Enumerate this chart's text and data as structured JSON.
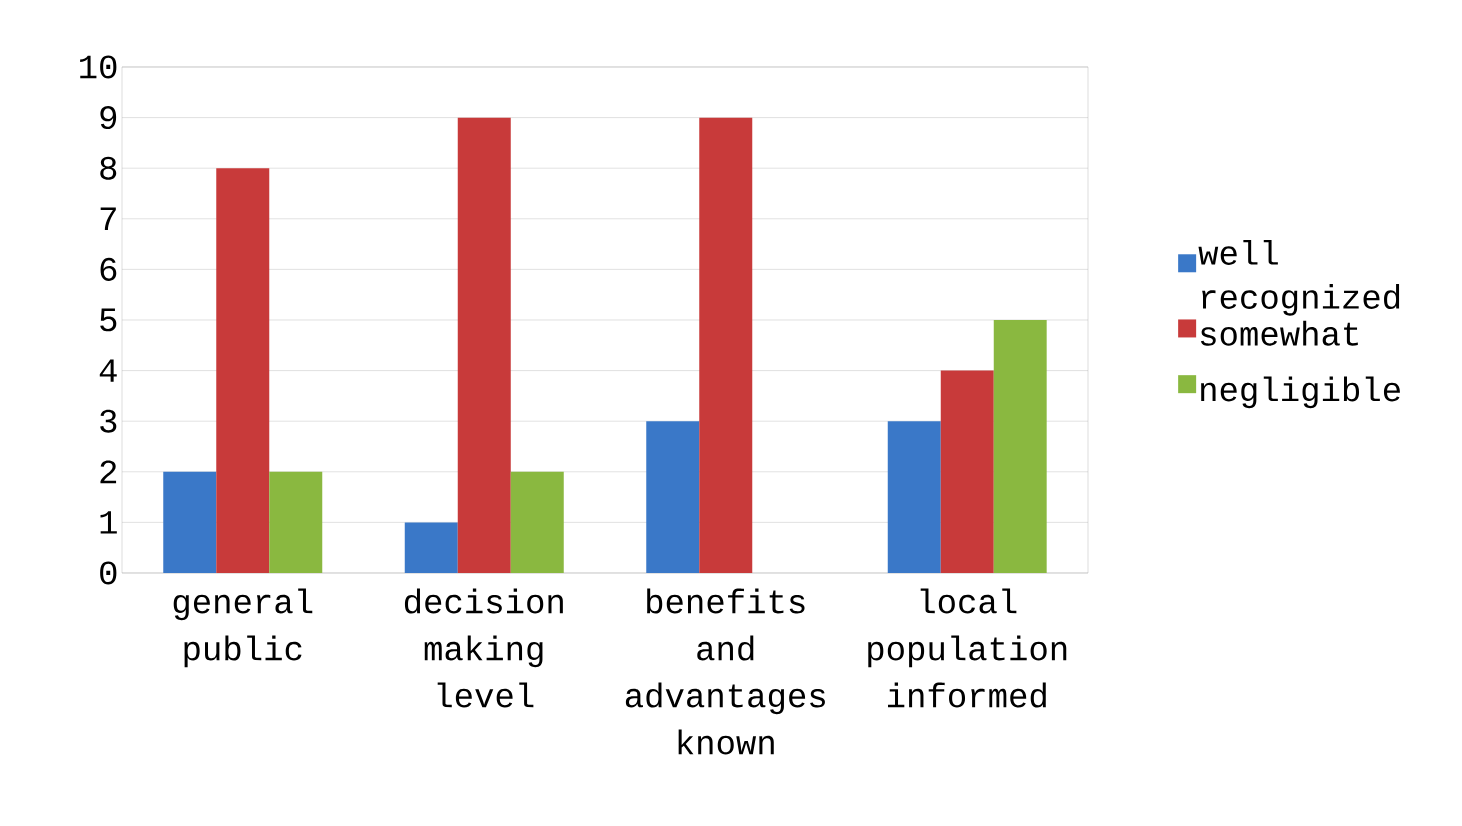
{
  "chart_data": {
    "type": "bar",
    "categories": [
      "general public",
      "decision making level",
      "benefits and advantages known",
      "local population informed"
    ],
    "series": [
      {
        "name": "well recognized",
        "color": "#3a78c8",
        "values": [
          2,
          1,
          3,
          3
        ]
      },
      {
        "name": "somewhat",
        "color": "#c83a3a",
        "values": [
          8,
          9,
          9,
          4
        ]
      },
      {
        "name": "negligible",
        "color": "#8ab840",
        "values": [
          2,
          2,
          0,
          5
        ]
      }
    ],
    "ylim": [
      0,
      10
    ],
    "yticks": [
      0,
      1,
      2,
      3,
      4,
      5,
      6,
      7,
      8,
      9,
      10
    ],
    "grid": "y",
    "legend": "right"
  }
}
